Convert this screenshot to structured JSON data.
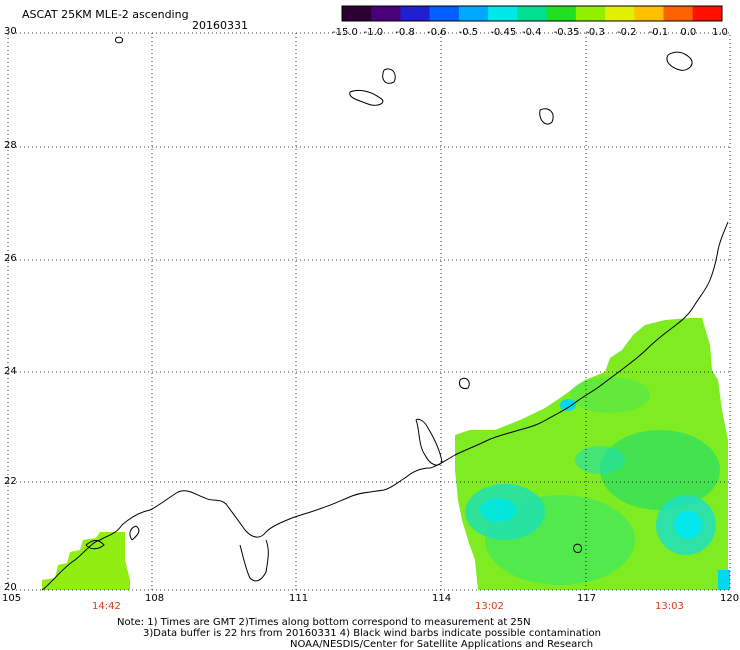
{
  "header": {
    "title": "ASCAT 25KM MLE-2 ascending",
    "date": "20160331"
  },
  "colorbar": {
    "labels": [
      "-15.0",
      "-1.0",
      "-0.8",
      "-0.6",
      "-0.5",
      "-0.45",
      "-0.4",
      "-0.35",
      "-0.3",
      "-0.2",
      "-0.1",
      "0.0",
      "1.0"
    ],
    "colors": [
      "#2a0030",
      "#4a0078",
      "#2020d0",
      "#0060ff",
      "#00a8ff",
      "#00e8e8",
      "#00e090",
      "#20e020",
      "#90f000",
      "#e0f000",
      "#ffc000",
      "#ff6000",
      "#ff1000"
    ]
  },
  "axes": {
    "lat_labels": [
      "30",
      "28",
      "26",
      "24",
      "22",
      "20"
    ],
    "lon_labels": [
      "105",
      "108",
      "111",
      "114",
      "117",
      "120"
    ]
  },
  "pass_times": [
    "14:42",
    "13:02",
    "13:03"
  ],
  "notes": [
    "Note: 1) Times are GMT 2)Times along bottom correspond to measurement at 25N",
    "3)Data buffer is 22 hrs from 20160331 4) Black wind barbs indicate possible contamination",
    "NOAA/NESDIS/Center for Satellite Applications and Research"
  ]
}
